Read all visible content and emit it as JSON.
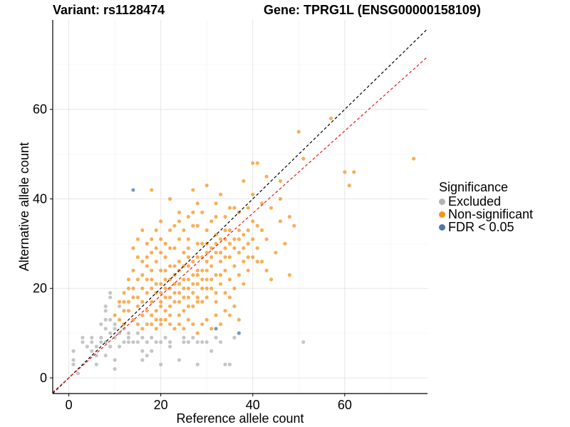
{
  "title": {
    "variant": "Variant: rs1128474",
    "gene": "Gene: TPRG1L (ENSG00000158109)"
  },
  "legend": {
    "title": "Significance",
    "items": [
      {
        "label": "Excluded",
        "color": "#b3b3b3"
      },
      {
        "label": "Non-significant",
        "color": "#f7941d"
      },
      {
        "label": "FDR < 0.05",
        "color": "#4a7aa8"
      }
    ]
  },
  "chart_data": {
    "type": "scatter",
    "xlabel": "Reference allele count",
    "ylabel": "Alternative allele count",
    "xlim": [
      -3.5,
      78
    ],
    "ylim": [
      -3.5,
      80
    ],
    "xticks": [
      0,
      20,
      40,
      60
    ],
    "yticks": [
      0,
      20,
      40,
      60
    ],
    "grid": true,
    "reference_lines": [
      {
        "type": "y=x",
        "color": "#000000",
        "style": "dashed"
      },
      {
        "type": "y=0.92x",
        "color": "#e41a1c",
        "style": "dashed"
      }
    ],
    "series": [
      {
        "name": "Excluded",
        "color": "#b3b3b3",
        "points": [
          [
            1,
            4
          ],
          [
            1,
            6
          ],
          [
            1,
            3
          ],
          [
            2,
            1
          ],
          [
            3,
            8
          ],
          [
            3,
            9
          ],
          [
            4,
            7
          ],
          [
            5,
            6
          ],
          [
            5,
            8
          ],
          [
            5,
            9
          ],
          [
            6,
            3
          ],
          [
            6,
            5
          ],
          [
            6,
            7
          ],
          [
            7,
            9
          ],
          [
            7,
            12
          ],
          [
            7,
            8
          ],
          [
            8,
            11
          ],
          [
            8,
            13
          ],
          [
            8,
            8
          ],
          [
            8,
            5
          ],
          [
            8,
            15
          ],
          [
            9,
            7
          ],
          [
            9,
            10
          ],
          [
            9,
            18
          ],
          [
            9,
            19
          ],
          [
            10,
            2
          ],
          [
            10,
            9
          ],
          [
            10,
            12
          ],
          [
            10,
            4
          ],
          [
            10,
            11
          ],
          [
            11,
            10
          ],
          [
            11,
            7
          ],
          [
            11,
            16
          ],
          [
            12,
            8
          ],
          [
            12,
            12
          ],
          [
            13,
            8
          ],
          [
            13,
            9
          ],
          [
            14,
            8
          ],
          [
            15,
            8
          ],
          [
            15,
            10
          ],
          [
            16,
            4
          ],
          [
            16,
            6
          ],
          [
            16,
            9
          ],
          [
            17,
            5
          ],
          [
            17,
            8
          ],
          [
            18,
            6
          ],
          [
            18,
            9
          ],
          [
            19,
            8
          ],
          [
            20,
            3
          ],
          [
            20,
            8
          ],
          [
            21,
            9
          ],
          [
            22,
            7
          ],
          [
            22,
            8
          ],
          [
            24,
            4
          ],
          [
            25,
            8
          ],
          [
            25,
            9
          ],
          [
            26,
            8
          ],
          [
            27,
            9
          ],
          [
            28,
            3
          ],
          [
            28,
            8
          ],
          [
            29,
            8
          ],
          [
            30,
            8
          ],
          [
            31,
            6
          ],
          [
            32,
            9
          ],
          [
            33,
            8
          ],
          [
            34,
            3
          ],
          [
            35,
            3
          ],
          [
            36,
            9
          ],
          [
            51,
            8
          ],
          [
            12,
            11
          ],
          [
            13,
            10
          ],
          [
            9,
            13
          ],
          [
            8,
            16
          ]
        ]
      },
      {
        "name": "Non-significant",
        "color": "#f7941d",
        "points": [
          [
            13,
            20
          ],
          [
            13,
            22
          ],
          [
            14,
            18
          ],
          [
            14,
            24
          ],
          [
            15,
            16
          ],
          [
            15,
            27
          ],
          [
            16,
            14
          ],
          [
            16,
            20
          ],
          [
            16,
            23
          ],
          [
            17,
            19
          ],
          [
            17,
            25
          ],
          [
            17,
            30
          ],
          [
            18,
            17
          ],
          [
            18,
            22
          ],
          [
            18,
            28
          ],
          [
            19,
            15
          ],
          [
            19,
            21
          ],
          [
            19,
            26
          ],
          [
            20,
            13
          ],
          [
            20,
            19
          ],
          [
            20,
            24
          ],
          [
            20,
            31
          ],
          [
            21,
            18
          ],
          [
            21,
            22
          ],
          [
            21,
            27
          ],
          [
            22,
            16
          ],
          [
            22,
            20
          ],
          [
            22,
            25
          ],
          [
            22,
            33
          ],
          [
            23,
            19
          ],
          [
            23,
            23
          ],
          [
            23,
            29
          ],
          [
            24,
            14
          ],
          [
            24,
            21
          ],
          [
            24,
            26
          ],
          [
            24,
            35
          ],
          [
            25,
            18
          ],
          [
            25,
            22
          ],
          [
            25,
            28
          ],
          [
            26,
            16
          ],
          [
            26,
            20
          ],
          [
            26,
            25
          ],
          [
            26,
            31
          ],
          [
            27,
            19
          ],
          [
            27,
            23
          ],
          [
            27,
            34
          ],
          [
            28,
            17
          ],
          [
            28,
            21
          ],
          [
            28,
            27
          ],
          [
            28,
            39
          ],
          [
            29,
            20
          ],
          [
            29,
            24
          ],
          [
            29,
            30
          ],
          [
            30,
            18
          ],
          [
            30,
            22
          ],
          [
            30,
            26
          ],
          [
            30,
            33
          ],
          [
            31,
            20
          ],
          [
            31,
            25
          ],
          [
            31,
            29
          ],
          [
            32,
            17
          ],
          [
            32,
            23
          ],
          [
            32,
            28
          ],
          [
            32,
            36
          ],
          [
            33,
            21
          ],
          [
            33,
            26
          ],
          [
            33,
            31
          ],
          [
            34,
            19
          ],
          [
            34,
            24
          ],
          [
            34,
            29
          ],
          [
            35,
            22
          ],
          [
            35,
            27
          ],
          [
            35,
            33
          ],
          [
            36,
            20
          ],
          [
            36,
            25
          ],
          [
            36,
            38
          ],
          [
            37,
            23
          ],
          [
            37,
            28
          ],
          [
            38,
            21
          ],
          [
            38,
            26
          ],
          [
            38,
            32
          ],
          [
            39,
            24
          ],
          [
            39,
            30
          ],
          [
            40,
            27
          ],
          [
            40,
            35
          ],
          [
            41,
            29
          ],
          [
            42,
            26
          ],
          [
            42,
            33
          ],
          [
            43,
            31
          ],
          [
            44,
            38
          ],
          [
            45,
            28
          ],
          [
            46,
            44
          ],
          [
            46,
            35
          ],
          [
            47,
            30
          ],
          [
            48,
            23
          ],
          [
            48,
            36
          ],
          [
            49,
            34
          ],
          [
            50,
            55
          ],
          [
            51,
            49
          ],
          [
            57,
            58
          ],
          [
            60,
            46
          ],
          [
            61,
            43
          ],
          [
            62,
            46
          ],
          [
            75,
            49
          ],
          [
            38,
            44
          ],
          [
            40,
            48
          ],
          [
            41,
            48
          ],
          [
            43,
            45
          ],
          [
            46,
            40
          ],
          [
            18,
            42
          ],
          [
            22,
            40
          ],
          [
            27,
            42
          ],
          [
            30,
            43
          ],
          [
            33,
            41
          ],
          [
            10,
            14
          ],
          [
            11,
            17
          ],
          [
            11,
            13
          ],
          [
            12,
            15
          ],
          [
            12,
            19
          ],
          [
            12,
            12
          ],
          [
            14,
            13
          ],
          [
            15,
            12
          ],
          [
            16,
            11
          ],
          [
            17,
            12
          ],
          [
            18,
            12
          ],
          [
            19,
            11
          ],
          [
            20,
            12
          ],
          [
            21,
            13
          ],
          [
            22,
            12
          ],
          [
            23,
            11
          ],
          [
            24,
            12
          ],
          [
            25,
            11
          ],
          [
            26,
            13
          ],
          [
            27,
            12
          ],
          [
            28,
            10
          ],
          [
            29,
            12
          ],
          [
            30,
            13
          ],
          [
            31,
            11
          ],
          [
            32,
            14
          ],
          [
            33,
            12
          ],
          [
            34,
            15
          ],
          [
            35,
            14
          ],
          [
            36,
            16
          ],
          [
            37,
            13
          ],
          [
            14,
            29
          ],
          [
            15,
            31
          ],
          [
            16,
            33
          ],
          [
            17,
            27
          ],
          [
            18,
            31
          ],
          [
            19,
            33
          ],
          [
            20,
            35
          ],
          [
            21,
            30
          ],
          [
            23,
            34
          ],
          [
            24,
            37
          ],
          [
            25,
            33
          ],
          [
            26,
            36
          ],
          [
            27,
            37
          ],
          [
            28,
            34
          ],
          [
            29,
            37
          ],
          [
            31,
            35
          ],
          [
            32,
            39
          ],
          [
            34,
            36
          ],
          [
            35,
            38
          ],
          [
            37,
            37
          ],
          [
            39,
            38
          ],
          [
            40,
            41
          ],
          [
            42,
            39
          ],
          [
            43,
            24
          ],
          [
            44,
            22
          ],
          [
            41,
            34
          ],
          [
            39,
            33
          ],
          [
            37,
            31
          ],
          [
            36,
            29
          ],
          [
            34,
            27
          ],
          [
            33,
            23
          ],
          [
            31,
            22
          ],
          [
            30,
            20
          ],
          [
            28,
            18
          ],
          [
            27,
            16
          ],
          [
            25,
            15
          ],
          [
            24,
            17
          ],
          [
            22,
            14
          ],
          [
            21,
            15
          ],
          [
            20,
            16
          ],
          [
            19,
            13
          ],
          [
            18,
            14
          ],
          [
            17,
            15
          ],
          [
            16,
            17
          ],
          [
            15,
            18
          ],
          [
            14,
            20
          ],
          [
            13,
            17
          ],
          [
            12,
            17
          ],
          [
            13,
            15
          ],
          [
            15,
            22
          ],
          [
            16,
            26
          ],
          [
            17,
            22
          ],
          [
            18,
            24
          ],
          [
            19,
            19
          ],
          [
            20,
            21
          ],
          [
            21,
            24
          ],
          [
            22,
            22
          ],
          [
            23,
            25
          ],
          [
            24,
            24
          ],
          [
            25,
            25
          ],
          [
            26,
            27
          ],
          [
            27,
            26
          ],
          [
            28,
            24
          ],
          [
            29,
            27
          ],
          [
            30,
            28
          ],
          [
            31,
            27
          ],
          [
            32,
            30
          ],
          [
            33,
            28
          ],
          [
            34,
            31
          ],
          [
            35,
            30
          ],
          [
            36,
            31
          ],
          [
            37,
            33
          ],
          [
            38,
            29
          ],
          [
            39,
            27
          ],
          [
            40,
            31
          ],
          [
            41,
            26
          ],
          [
            19,
            29
          ],
          [
            20,
            28
          ],
          [
            21,
            20
          ],
          [
            22,
            18
          ],
          [
            23,
            21
          ],
          [
            24,
            19
          ],
          [
            25,
            20
          ],
          [
            26,
            22
          ],
          [
            27,
            21
          ],
          [
            28,
            23
          ],
          [
            29,
            22
          ],
          [
            30,
            24
          ],
          [
            23,
            17
          ],
          [
            26,
            18
          ],
          [
            29,
            17
          ],
          [
            32,
            19
          ],
          [
            35,
            18
          ],
          [
            18,
            20
          ],
          [
            20,
            17
          ],
          [
            22,
            29
          ],
          [
            24,
            31
          ],
          [
            26,
            29
          ],
          [
            28,
            30
          ],
          [
            30,
            30
          ],
          [
            32,
            32
          ],
          [
            34,
            33
          ]
        ]
      },
      {
        "name": "FDR < 0.05",
        "color": "#4a7aa8",
        "points": [
          [
            14,
            42
          ],
          [
            32,
            11
          ],
          [
            37,
            10
          ]
        ]
      }
    ]
  }
}
